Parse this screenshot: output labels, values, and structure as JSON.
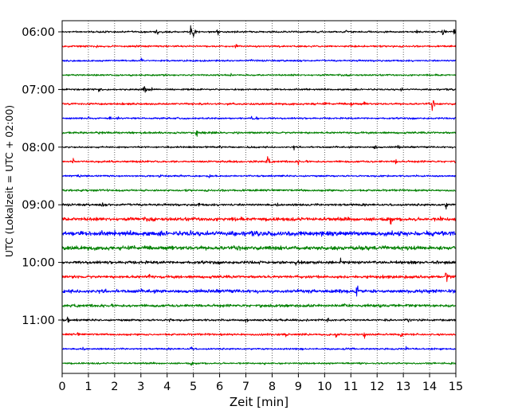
{
  "chart_data": {
    "type": "line",
    "title": "",
    "xlabel": "Zeit  [min]",
    "ylabel": "UTC (Lokalzeit = UTC + 02:00)",
    "xlim": [
      0,
      15
    ],
    "x_ticks": [
      "0",
      "1",
      "2",
      "3",
      "4",
      "5",
      "6",
      "7",
      "8",
      "9",
      "10",
      "11",
      "12",
      "13",
      "14",
      "15"
    ],
    "y_ticks": [
      "06:00",
      "07:00",
      "08:00",
      "09:00",
      "10:00",
      "11:00"
    ],
    "grid": "vertical dotted at each minute",
    "trace_colors": [
      "#000000",
      "#ff0000",
      "#0000ff",
      "#008000"
    ],
    "traces": [
      {
        "start": "06:00",
        "base": 1.5,
        "events": [
          [
            3.6,
            7
          ],
          [
            4.9,
            18
          ],
          [
            5.0,
            12
          ],
          [
            5.9,
            9
          ],
          [
            6.6,
            4
          ],
          [
            10.8,
            6
          ],
          [
            13.5,
            5
          ],
          [
            14.5,
            12
          ],
          [
            14.9,
            10
          ]
        ]
      },
      {
        "start": "06:15",
        "base": 1.5,
        "events": [
          [
            1.3,
            6
          ],
          [
            6.6,
            5
          ],
          [
            7.4,
            4
          ],
          [
            12.6,
            6
          ]
        ]
      },
      {
        "start": "06:30",
        "base": 1.5,
        "events": [
          [
            3.0,
            7
          ],
          [
            7.2,
            4
          ],
          [
            8.5,
            5
          ],
          [
            11.2,
            4
          ]
        ]
      },
      {
        "start": "06:45",
        "base": 1.5,
        "events": [
          [
            2.6,
            5
          ],
          [
            6.4,
            5
          ],
          [
            8.8,
            4
          ],
          [
            14.4,
            4
          ]
        ]
      },
      {
        "start": "07:00",
        "base": 1.5,
        "events": [
          [
            1.4,
            7
          ],
          [
            3.1,
            11
          ],
          [
            3.4,
            5
          ],
          [
            9.3,
            4
          ],
          [
            12.9,
            5
          ]
        ]
      },
      {
        "start": "07:15",
        "base": 1.8,
        "events": [
          [
            8.8,
            4
          ],
          [
            9.5,
            7
          ],
          [
            10.0,
            5
          ],
          [
            11.0,
            8
          ],
          [
            11.5,
            6
          ],
          [
            14.1,
            11
          ]
        ]
      },
      {
        "start": "07:30",
        "base": 1.5,
        "events": [
          [
            1.0,
            5
          ],
          [
            1.8,
            6
          ],
          [
            2.1,
            5
          ],
          [
            4.4,
            6
          ],
          [
            7.2,
            9
          ],
          [
            7.4,
            6
          ]
        ]
      },
      {
        "start": "07:45",
        "base": 1.8,
        "events": [
          [
            0.3,
            6
          ],
          [
            5.1,
            9
          ],
          [
            5.4,
            5
          ]
        ]
      },
      {
        "start": "08:00",
        "base": 1.5,
        "events": [
          [
            3.2,
            4
          ],
          [
            6.0,
            4
          ],
          [
            8.8,
            6
          ],
          [
            11.9,
            10
          ],
          [
            12.8,
            7
          ]
        ]
      },
      {
        "start": "08:15",
        "base": 1.8,
        "events": [
          [
            0.4,
            7
          ],
          [
            7.8,
            15
          ],
          [
            9.0,
            5
          ],
          [
            10.8,
            4
          ],
          [
            12.7,
            7
          ]
        ]
      },
      {
        "start": "08:30",
        "base": 1.5,
        "events": [
          [
            0.6,
            7
          ],
          [
            3.7,
            9
          ],
          [
            5.6,
            4
          ],
          [
            11.7,
            4
          ],
          [
            12.2,
            4
          ]
        ]
      },
      {
        "start": "08:45",
        "base": 1.8,
        "events": [
          [
            2.1,
            4
          ],
          [
            9.2,
            5
          ],
          [
            10.1,
            8
          ],
          [
            11.0,
            4
          ]
        ]
      },
      {
        "start": "09:00",
        "base": 2.0,
        "events": [
          [
            1.5,
            6
          ],
          [
            5.2,
            5
          ],
          [
            8.2,
            5
          ],
          [
            14.6,
            11
          ]
        ]
      },
      {
        "start": "09:15",
        "base": 3.0,
        "events": [
          [
            1.5,
            7
          ],
          [
            9.2,
            6
          ],
          [
            12.5,
            11
          ],
          [
            14.4,
            6
          ]
        ]
      },
      {
        "start": "09:30",
        "base": 4.0,
        "events": [
          [
            2.0,
            6
          ],
          [
            4.9,
            9
          ],
          [
            8.6,
            7
          ],
          [
            14.5,
            8
          ]
        ]
      },
      {
        "start": "09:45",
        "base": 3.5,
        "events": [
          [
            4.2,
            6
          ],
          [
            9.8,
            5
          ],
          [
            12.9,
            4
          ]
        ]
      },
      {
        "start": "10:00",
        "base": 2.5,
        "events": [
          [
            2.9,
            5
          ],
          [
            8.9,
            5
          ],
          [
            10.6,
            7
          ],
          [
            14.6,
            9
          ]
        ]
      },
      {
        "start": "10:15",
        "base": 2.5,
        "events": [
          [
            3.3,
            8
          ],
          [
            9.6,
            6
          ],
          [
            12.2,
            5
          ],
          [
            14.6,
            16
          ]
        ]
      },
      {
        "start": "10:30",
        "base": 3.0,
        "events": [
          [
            1.0,
            6
          ],
          [
            3.0,
            5
          ],
          [
            11.2,
            22
          ],
          [
            13.4,
            6
          ]
        ]
      },
      {
        "start": "10:45",
        "base": 2.5,
        "events": [
          [
            4.8,
            5
          ],
          [
            10.7,
            8
          ]
        ]
      },
      {
        "start": "11:00",
        "base": 1.8,
        "events": [
          [
            0.2,
            8
          ],
          [
            4.1,
            7
          ],
          [
            7.0,
            8
          ],
          [
            10.1,
            8
          ],
          [
            10.9,
            5
          ],
          [
            13.2,
            8
          ]
        ]
      },
      {
        "start": "11:15",
        "base": 1.8,
        "events": [
          [
            0.6,
            5
          ],
          [
            6.8,
            5
          ],
          [
            8.5,
            6
          ],
          [
            10.4,
            9
          ],
          [
            11.5,
            8
          ],
          [
            12.9,
            7
          ]
        ]
      },
      {
        "start": "11:30",
        "base": 1.5,
        "events": [
          [
            0.8,
            6
          ],
          [
            4.9,
            10
          ],
          [
            9.1,
            6
          ],
          [
            13.1,
            6
          ]
        ]
      },
      {
        "start": "11:45",
        "base": 1.5,
        "events": [
          [
            2.3,
            5
          ],
          [
            4.9,
            6
          ],
          [
            7.7,
            4
          ],
          [
            13.9,
            4
          ]
        ]
      }
    ]
  }
}
